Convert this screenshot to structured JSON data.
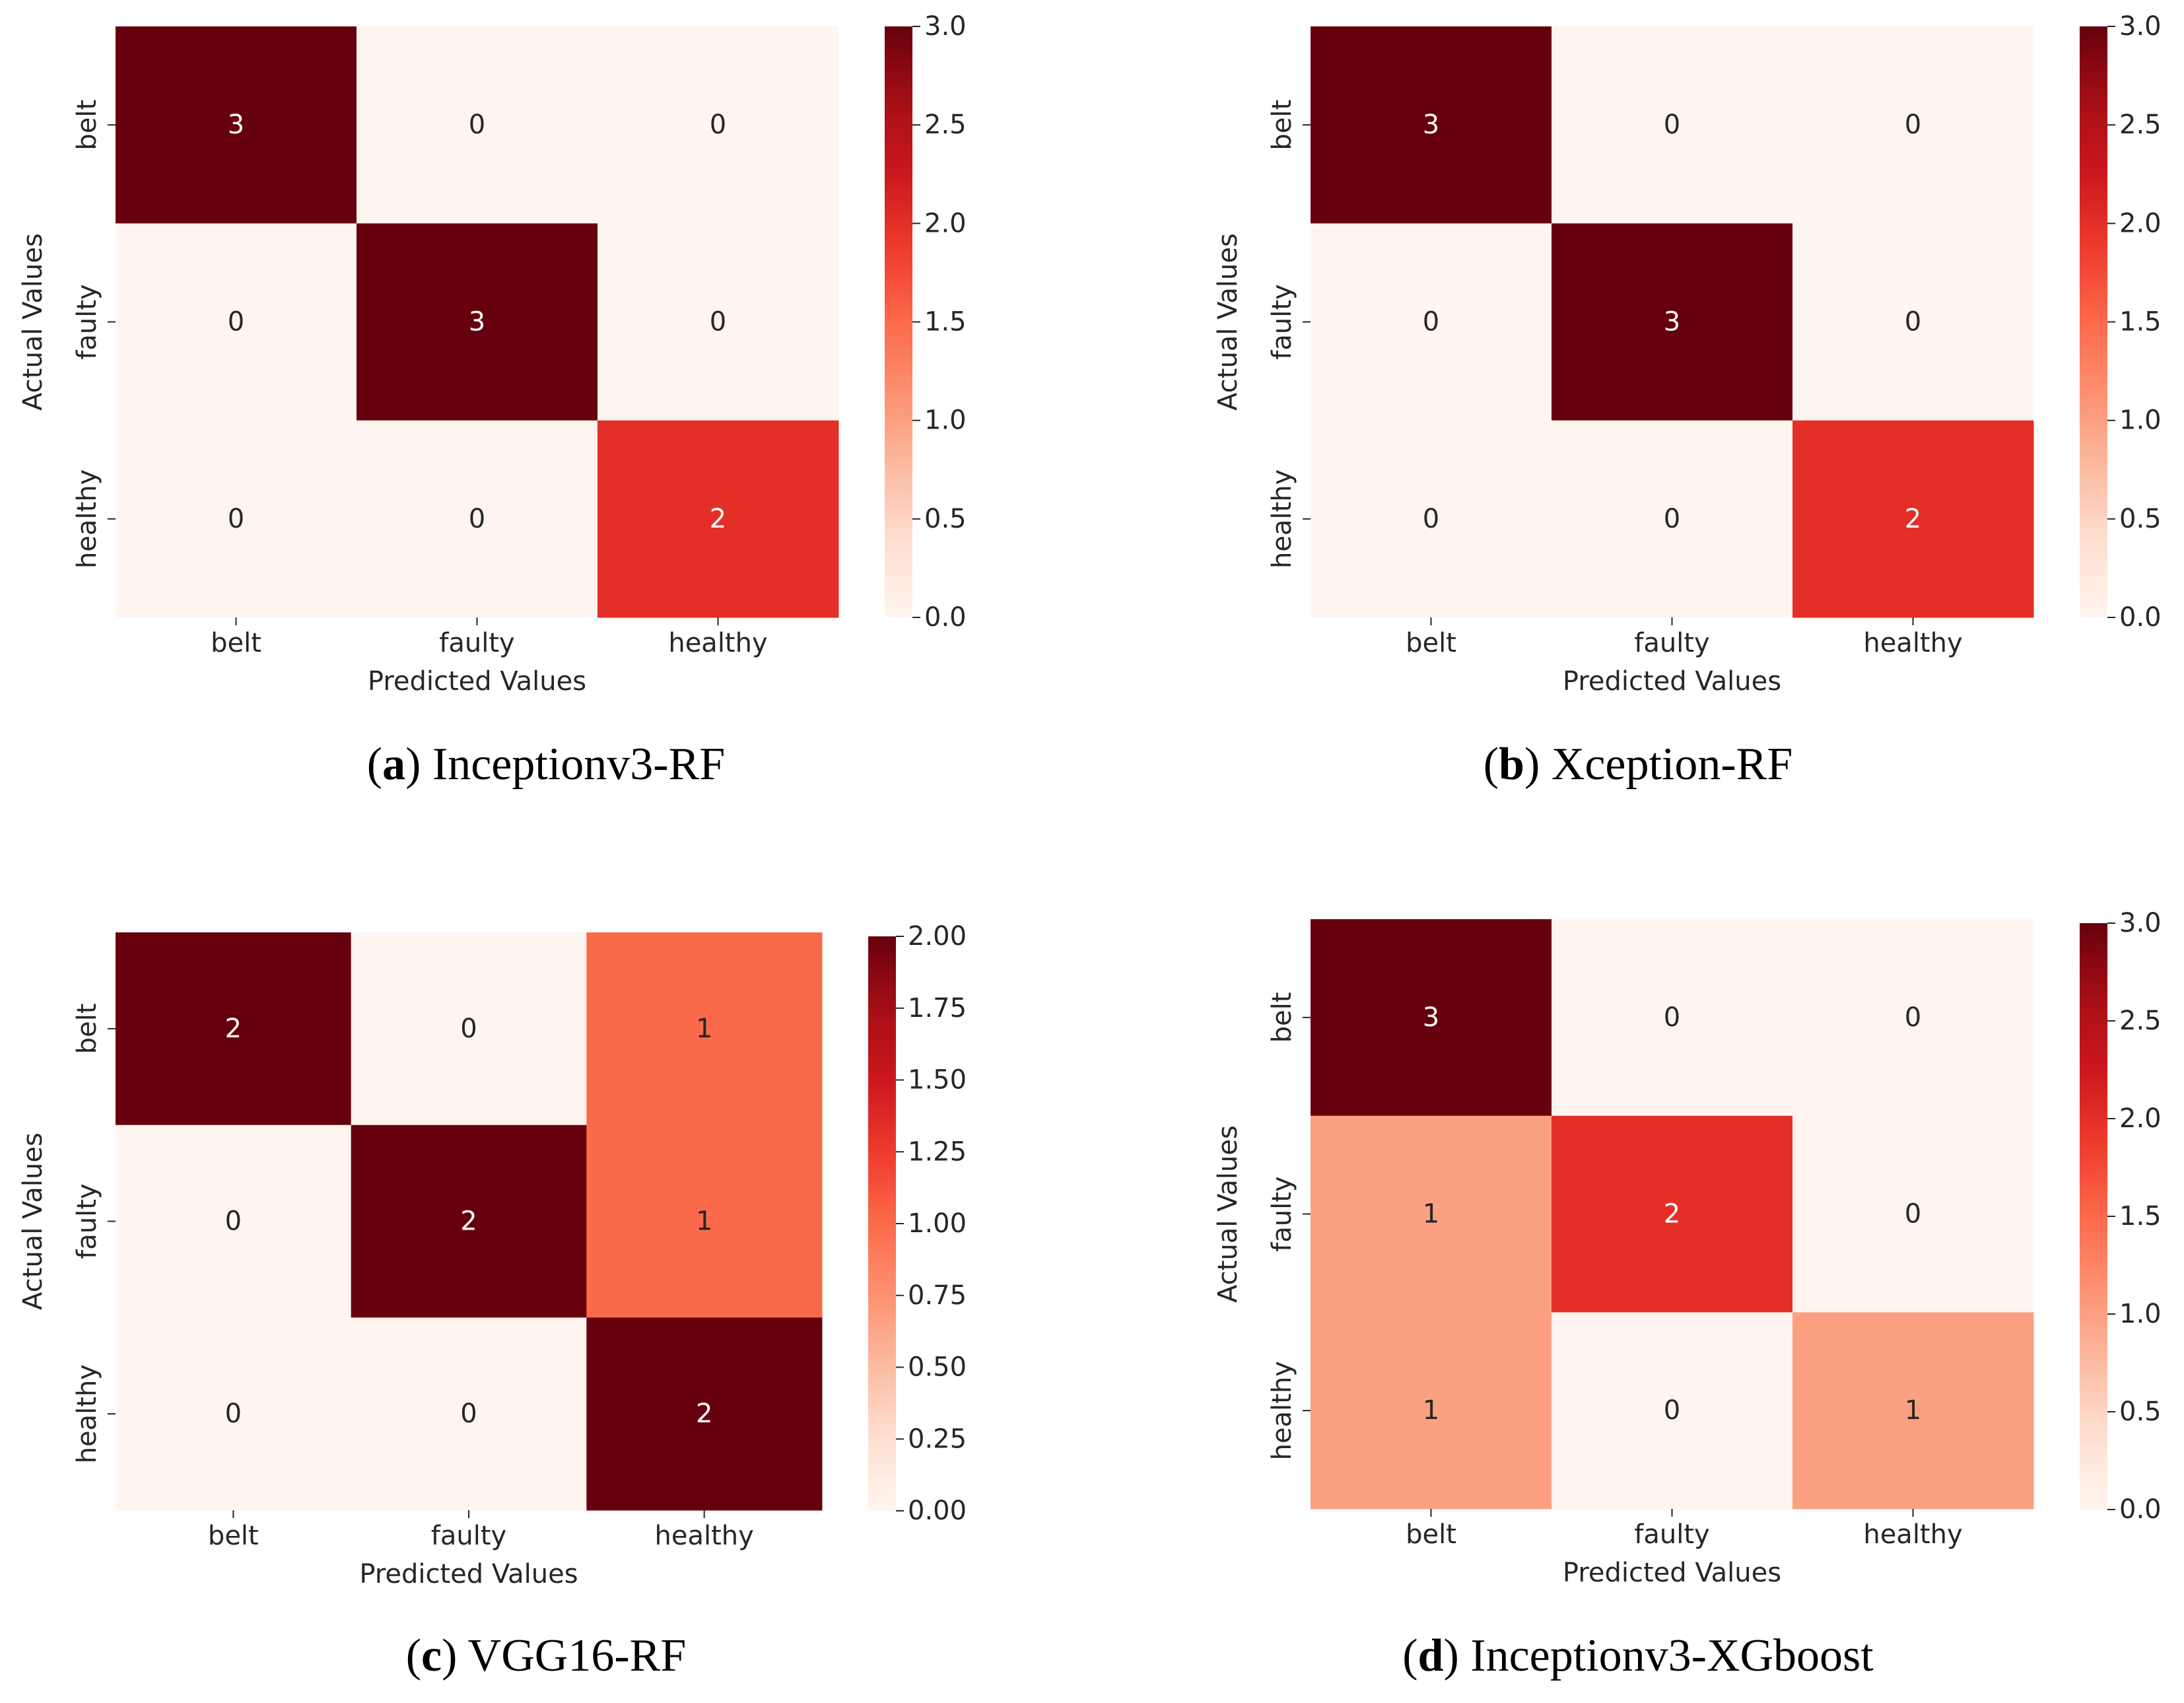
{
  "chart_data": [
    {
      "type": "heatmap",
      "id": "a",
      "caption_letter": "a",
      "caption_title": "Inceptionv3-RF",
      "xlabel": "Predicted Values",
      "ylabel": "Actual Values",
      "x_categories": [
        "belt",
        "faulty",
        "healthy"
      ],
      "y_categories": [
        "belt",
        "faulty",
        "healthy"
      ],
      "values": [
        [
          3,
          0,
          0
        ],
        [
          0,
          3,
          0
        ],
        [
          0,
          0,
          2
        ]
      ],
      "vmin": 0,
      "vmax": 3,
      "colorbar_ticks": [
        "0.0",
        "0.5",
        "1.0",
        "1.5",
        "2.0",
        "2.5",
        "3.0"
      ],
      "colormap": "Reds"
    },
    {
      "type": "heatmap",
      "id": "b",
      "caption_letter": "b",
      "caption_title": "Xception-RF",
      "xlabel": "Predicted Values",
      "ylabel": "Actual Values",
      "x_categories": [
        "belt",
        "faulty",
        "healthy"
      ],
      "y_categories": [
        "belt",
        "faulty",
        "healthy"
      ],
      "values": [
        [
          3,
          0,
          0
        ],
        [
          0,
          3,
          0
        ],
        [
          0,
          0,
          2
        ]
      ],
      "vmin": 0,
      "vmax": 3,
      "colorbar_ticks": [
        "0.0",
        "0.5",
        "1.0",
        "1.5",
        "2.0",
        "2.5",
        "3.0"
      ],
      "colormap": "Reds"
    },
    {
      "type": "heatmap",
      "id": "c",
      "caption_letter": "c",
      "caption_title": "VGG16-RF",
      "xlabel": "Predicted Values",
      "ylabel": "Actual Values",
      "x_categories": [
        "belt",
        "faulty",
        "healthy"
      ],
      "y_categories": [
        "belt",
        "faulty",
        "healthy"
      ],
      "values": [
        [
          2,
          0,
          1
        ],
        [
          0,
          2,
          1
        ],
        [
          0,
          0,
          2
        ]
      ],
      "vmin": 0,
      "vmax": 2,
      "colorbar_ticks": [
        "0.00",
        "0.25",
        "0.50",
        "0.75",
        "1.00",
        "1.25",
        "1.50",
        "1.75",
        "2.00"
      ],
      "colormap": "Reds"
    },
    {
      "type": "heatmap",
      "id": "d",
      "caption_letter": "d",
      "caption_title": "Inceptionv3-XGboost",
      "xlabel": "Predicted Values",
      "ylabel": "Actual Values",
      "x_categories": [
        "belt",
        "faulty",
        "healthy"
      ],
      "y_categories": [
        "belt",
        "faulty",
        "healthy"
      ],
      "values": [
        [
          3,
          0,
          0
        ],
        [
          1,
          2,
          0
        ],
        [
          1,
          0,
          1
        ]
      ],
      "vmin": 0,
      "vmax": 3,
      "colorbar_ticks": [
        "0.0",
        "0.5",
        "1.0",
        "1.5",
        "2.0",
        "2.5",
        "3.0"
      ],
      "colormap": "Reds"
    }
  ]
}
